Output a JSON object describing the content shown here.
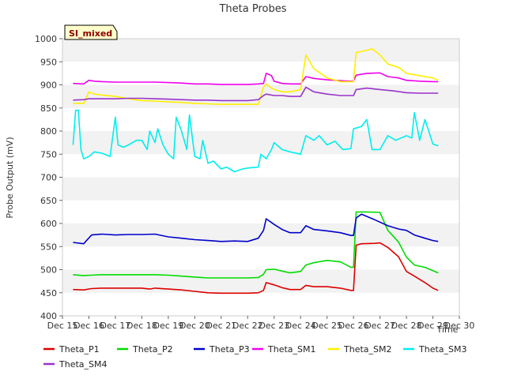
{
  "chart_data": {
    "type": "line",
    "title": "Theta Probes",
    "badge": "SI_mixed",
    "xlabel": "Time",
    "ylabel": "Probe Output (mV)",
    "x_ticks": [
      "Dec 15",
      "Dec 16",
      "Dec 17",
      "Dec 18",
      "Dec 19",
      "Dec 20",
      "Dec 21",
      "Dec 22",
      "Dec 23",
      "Dec 24",
      "Dec 25",
      "Dec 26",
      "Dec 27",
      "Dec 28",
      "Dec 29",
      "Dec 30"
    ],
    "xlim": [
      15,
      30
    ],
    "ylim": [
      400,
      1000
    ],
    "y_ticks": [
      "400",
      "450",
      "500",
      "550",
      "600",
      "650",
      "700",
      "750",
      "800",
      "850",
      "900",
      "950",
      "1000"
    ],
    "grid": "horizontal bands",
    "legend_position": "bottom",
    "series": [
      {
        "name": "Theta_P1",
        "color": "#dd0000",
        "x": [
          15.4,
          15.8,
          16.1,
          16.5,
          17.0,
          17.5,
          18.0,
          18.3,
          18.5,
          19.0,
          19.5,
          20.0,
          20.5,
          21.0,
          21.5,
          22.0,
          22.4,
          22.6,
          22.7,
          23.0,
          23.3,
          23.6,
          24.0,
          24.2,
          24.5,
          25.0,
          25.5,
          25.9,
          26.0,
          26.1,
          26.3,
          26.8,
          27.0,
          27.3,
          27.7,
          28.0,
          28.3,
          28.7,
          29.0,
          29.2
        ],
        "values": [
          457,
          456,
          459,
          460,
          460,
          460,
          460,
          458,
          460,
          458,
          456,
          453,
          450,
          449,
          449,
          449,
          450,
          455,
          472,
          467,
          461,
          457,
          457,
          466,
          463,
          463,
          460,
          455,
          455,
          553,
          556,
          557,
          558,
          548,
          528,
          496,
          486,
          472,
          460,
          455
        ]
      },
      {
        "name": "Theta_P2",
        "color": "#00dd00",
        "x": [
          15.4,
          15.8,
          16.1,
          16.5,
          17.0,
          17.5,
          18.0,
          18.5,
          19.0,
          19.5,
          20.0,
          20.5,
          21.0,
          21.5,
          22.0,
          22.4,
          22.6,
          22.7,
          23.0,
          23.3,
          23.6,
          24.0,
          24.2,
          24.5,
          25.0,
          25.5,
          25.9,
          26.0,
          26.1,
          26.5,
          27.0,
          27.3,
          27.7,
          28.0,
          28.3,
          28.7,
          29.0,
          29.2
        ],
        "values": [
          489,
          487,
          488,
          489,
          489,
          489,
          489,
          489,
          488,
          486,
          484,
          482,
          482,
          482,
          482,
          483,
          490,
          500,
          501,
          497,
          493,
          496,
          510,
          515,
          520,
          517,
          505,
          505,
          625,
          625,
          624,
          585,
          560,
          527,
          510,
          505,
          498,
          493
        ]
      },
      {
        "name": "Theta_P3",
        "color": "#0000cc",
        "x": [
          15.4,
          15.8,
          16.1,
          16.5,
          17.0,
          17.5,
          18.0,
          18.5,
          19.0,
          19.5,
          20.0,
          20.5,
          21.0,
          21.5,
          22.0,
          22.4,
          22.6,
          22.7,
          23.0,
          23.3,
          23.6,
          24.0,
          24.2,
          24.5,
          25.0,
          25.5,
          25.9,
          26.0,
          26.1,
          26.3,
          26.8,
          27.3,
          27.7,
          28.0,
          28.3,
          28.7,
          29.0,
          29.2
        ],
        "values": [
          559,
          556,
          575,
          577,
          575,
          576,
          576,
          577,
          571,
          568,
          565,
          563,
          561,
          562,
          561,
          568,
          585,
          610,
          598,
          587,
          580,
          580,
          595,
          587,
          584,
          580,
          574,
          574,
          612,
          620,
          608,
          595,
          588,
          585,
          575,
          568,
          563,
          561
        ]
      },
      {
        "name": "Theta_SM1",
        "color": "#ee00ee",
        "x": [
          15.4,
          15.8,
          16.0,
          16.2,
          16.5,
          17.0,
          17.5,
          18.0,
          18.5,
          19.0,
          19.5,
          20.0,
          20.5,
          21.0,
          21.5,
          22.0,
          22.4,
          22.6,
          22.7,
          22.9,
          23.0,
          23.3,
          23.6,
          24.0,
          24.2,
          24.5,
          25.0,
          25.5,
          25.9,
          26.0,
          26.1,
          26.5,
          27.0,
          27.3,
          27.7,
          28.0,
          28.5,
          29.0,
          29.2
        ],
        "values": [
          903,
          902,
          910,
          908,
          907,
          906,
          906,
          906,
          906,
          905,
          904,
          902,
          902,
          901,
          901,
          901,
          902,
          903,
          925,
          920,
          908,
          903,
          902,
          902,
          918,
          914,
          911,
          909,
          908,
          908,
          921,
          925,
          926,
          918,
          915,
          910,
          908,
          907,
          907
        ]
      },
      {
        "name": "Theta_SM2",
        "color": "#ffee00",
        "x": [
          15.4,
          15.8,
          16.0,
          16.2,
          16.5,
          17.0,
          17.5,
          18.0,
          18.5,
          19.0,
          19.5,
          20.0,
          20.5,
          21.0,
          21.5,
          22.0,
          22.4,
          22.6,
          22.7,
          22.9,
          23.0,
          23.3,
          23.6,
          24.0,
          24.2,
          24.5,
          25.0,
          25.5,
          25.9,
          26.0,
          26.1,
          26.5,
          26.7,
          27.0,
          27.3,
          27.7,
          28.0,
          28.5,
          29.0,
          29.2
        ],
        "values": [
          860,
          860,
          885,
          880,
          878,
          875,
          870,
          866,
          865,
          863,
          862,
          860,
          859,
          858,
          858,
          858,
          858,
          895,
          902,
          893,
          890,
          885,
          885,
          890,
          965,
          935,
          915,
          907,
          907,
          907,
          970,
          975,
          978,
          965,
          945,
          938,
          925,
          920,
          915,
          910
        ]
      },
      {
        "name": "Theta_SM3",
        "color": "#00eeee",
        "x": [
          15.4,
          15.5,
          15.6,
          15.7,
          15.8,
          16.0,
          16.2,
          16.5,
          16.8,
          17.0,
          17.1,
          17.3,
          17.5,
          17.8,
          18.0,
          18.2,
          18.3,
          18.5,
          18.6,
          18.8,
          19.0,
          19.2,
          19.3,
          19.5,
          19.7,
          19.8,
          20.0,
          20.2,
          20.3,
          20.5,
          20.7,
          21.0,
          21.2,
          21.5,
          21.8,
          22.0,
          22.4,
          22.5,
          22.7,
          22.9,
          23.0,
          23.3,
          23.6,
          24.0,
          24.2,
          24.5,
          24.7,
          25.0,
          25.3,
          25.6,
          25.9,
          26.0,
          26.3,
          26.5,
          26.7,
          27.0,
          27.3,
          27.6,
          28.0,
          28.2,
          28.3,
          28.5,
          28.7,
          29.0,
          29.2
        ],
        "values": [
          770,
          845,
          845,
          760,
          740,
          745,
          755,
          752,
          745,
          830,
          770,
          765,
          770,
          780,
          780,
          760,
          800,
          775,
          805,
          770,
          750,
          740,
          830,
          800,
          760,
          835,
          745,
          740,
          780,
          730,
          735,
          718,
          722,
          712,
          718,
          720,
          722,
          750,
          740,
          760,
          775,
          760,
          755,
          750,
          790,
          780,
          790,
          770,
          778,
          760,
          762,
          805,
          810,
          825,
          760,
          760,
          790,
          780,
          790,
          785,
          840,
          780,
          825,
          772,
          768
        ]
      },
      {
        "name": "Theta_SM4",
        "color": "#9933cc",
        "x": [
          15.4,
          15.8,
          16.0,
          16.5,
          17.0,
          17.5,
          18.0,
          18.5,
          19.0,
          19.5,
          20.0,
          20.5,
          21.0,
          21.5,
          22.0,
          22.4,
          22.6,
          22.7,
          23.0,
          23.3,
          23.6,
          24.0,
          24.2,
          24.5,
          25.0,
          25.5,
          25.9,
          26.0,
          26.1,
          26.5,
          27.0,
          27.5,
          28.0,
          28.5,
          29.0,
          29.2
        ],
        "values": [
          867,
          868,
          870,
          870,
          870,
          871,
          871,
          870,
          869,
          868,
          867,
          867,
          866,
          866,
          866,
          868,
          877,
          880,
          877,
          877,
          875,
          875,
          895,
          885,
          880,
          877,
          877,
          877,
          890,
          893,
          890,
          887,
          883,
          882,
          882,
          882
        ]
      }
    ]
  }
}
